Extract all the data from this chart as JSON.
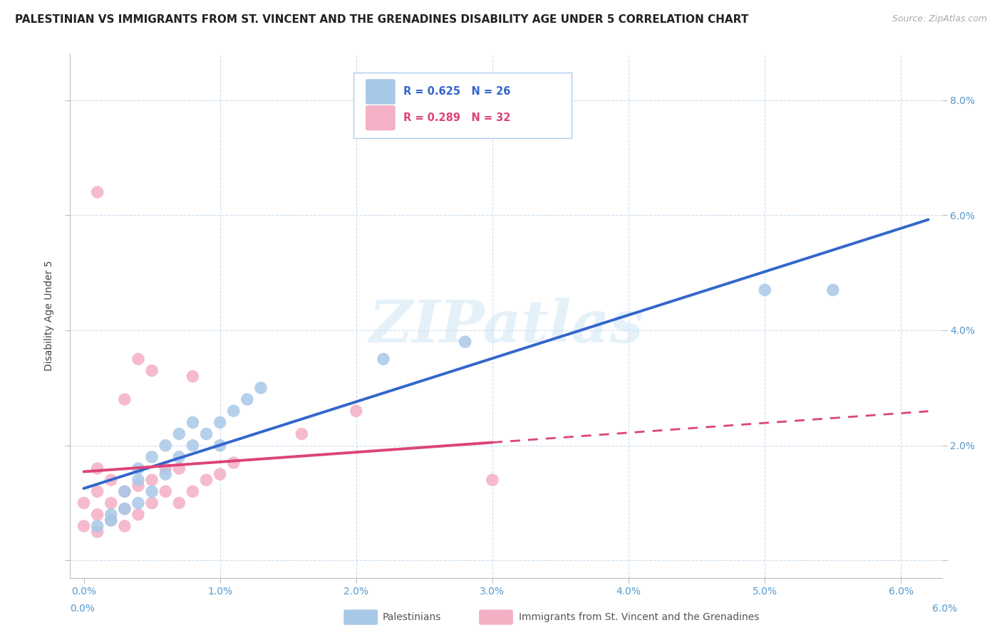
{
  "title": "PALESTINIAN VS IMMIGRANTS FROM ST. VINCENT AND THE GRENADINES DISABILITY AGE UNDER 5 CORRELATION CHART",
  "source": "Source: ZipAtlas.com",
  "ylabel": "Disability Age Under 5",
  "xlim": [
    -0.001,
    0.063
  ],
  "ylim": [
    -0.003,
    0.088
  ],
  "xticks": [
    0.0,
    0.01,
    0.02,
    0.03,
    0.04,
    0.05,
    0.06
  ],
  "xtick_labels": [
    "0.0%",
    "1.0%",
    "2.0%",
    "3.0%",
    "4.0%",
    "5.0%",
    "6.0%"
  ],
  "yticks": [
    0.0,
    0.02,
    0.04,
    0.06,
    0.08
  ],
  "ytick_labels": [
    "",
    "2.0%",
    "4.0%",
    "6.0%",
    "8.0%"
  ],
  "blue_color": "#a8c8e8",
  "pink_color": "#f4b0c4",
  "blue_line_color": "#3366cc",
  "pink_line_color": "#dd4477",
  "axis_tick_color": "#5599cc",
  "grid_color": "#ccddee",
  "background_color": "#ffffff",
  "watermark": "ZIPatlas",
  "blue_label": "Palestinians",
  "pink_label": "Immigrants from St. Vincent and the Grenadines",
  "blue_R": "0.625",
  "blue_N": "26",
  "pink_R": "0.289",
  "pink_N": "32",
  "title_fontsize": 11,
  "tick_fontsize": 10,
  "label_fontsize": 10,
  "blue_x": [
    0.001,
    0.002,
    0.002,
    0.003,
    0.003,
    0.004,
    0.004,
    0.004,
    0.005,
    0.005,
    0.006,
    0.006,
    0.007,
    0.007,
    0.008,
    0.008,
    0.009,
    0.01,
    0.01,
    0.011,
    0.012,
    0.013,
    0.022,
    0.028,
    0.05,
    0.055
  ],
  "blue_y": [
    0.006,
    0.007,
    0.008,
    0.009,
    0.012,
    0.01,
    0.014,
    0.016,
    0.012,
    0.018,
    0.015,
    0.02,
    0.018,
    0.022,
    0.02,
    0.024,
    0.022,
    0.02,
    0.024,
    0.026,
    0.028,
    0.03,
    0.035,
    0.038,
    0.047,
    0.047
  ],
  "pink_x": [
    0.0,
    0.0,
    0.001,
    0.001,
    0.001,
    0.001,
    0.002,
    0.002,
    0.002,
    0.003,
    0.003,
    0.003,
    0.003,
    0.004,
    0.004,
    0.004,
    0.005,
    0.005,
    0.005,
    0.006,
    0.006,
    0.007,
    0.007,
    0.008,
    0.008,
    0.009,
    0.01,
    0.011,
    0.016,
    0.02,
    0.03,
    0.001
  ],
  "pink_y": [
    0.006,
    0.01,
    0.005,
    0.008,
    0.012,
    0.016,
    0.007,
    0.01,
    0.014,
    0.006,
    0.009,
    0.012,
    0.028,
    0.008,
    0.013,
    0.035,
    0.01,
    0.014,
    0.033,
    0.012,
    0.016,
    0.01,
    0.016,
    0.012,
    0.032,
    0.014,
    0.015,
    0.017,
    0.022,
    0.026,
    0.014,
    0.064
  ]
}
